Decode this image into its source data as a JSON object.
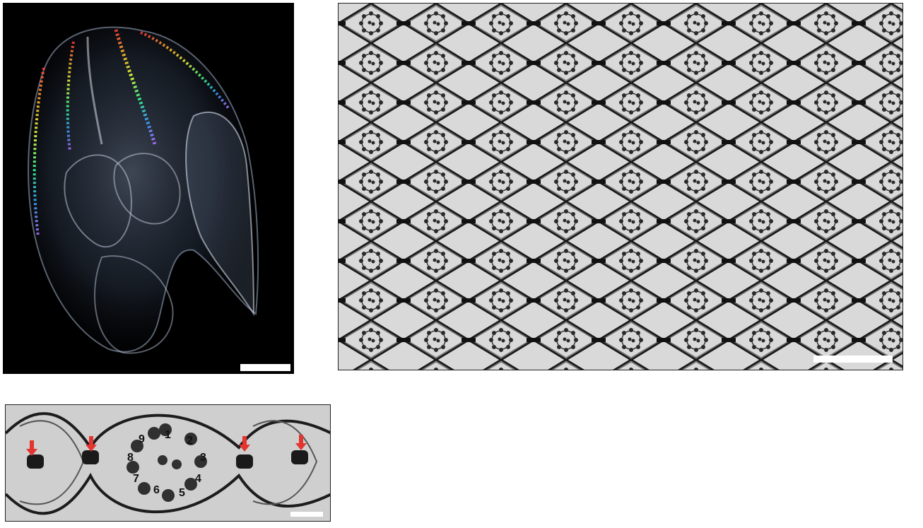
{
  "figure": {
    "panels": [
      {
        "id": "panel-a",
        "content": "ctenophore-photo"
      },
      {
        "id": "panel-b",
        "content": "tem-axoneme-array"
      },
      {
        "id": "panel-c",
        "content": "tem-axoneme-detail"
      }
    ],
    "doublet_numbers": [
      "1",
      "2",
      "3",
      "4",
      "5",
      "6",
      "7",
      "8",
      "9"
    ],
    "colors": {
      "arrow": "#e3342f",
      "background": "#ffffff",
      "scale_bar": "#ffffff"
    }
  }
}
